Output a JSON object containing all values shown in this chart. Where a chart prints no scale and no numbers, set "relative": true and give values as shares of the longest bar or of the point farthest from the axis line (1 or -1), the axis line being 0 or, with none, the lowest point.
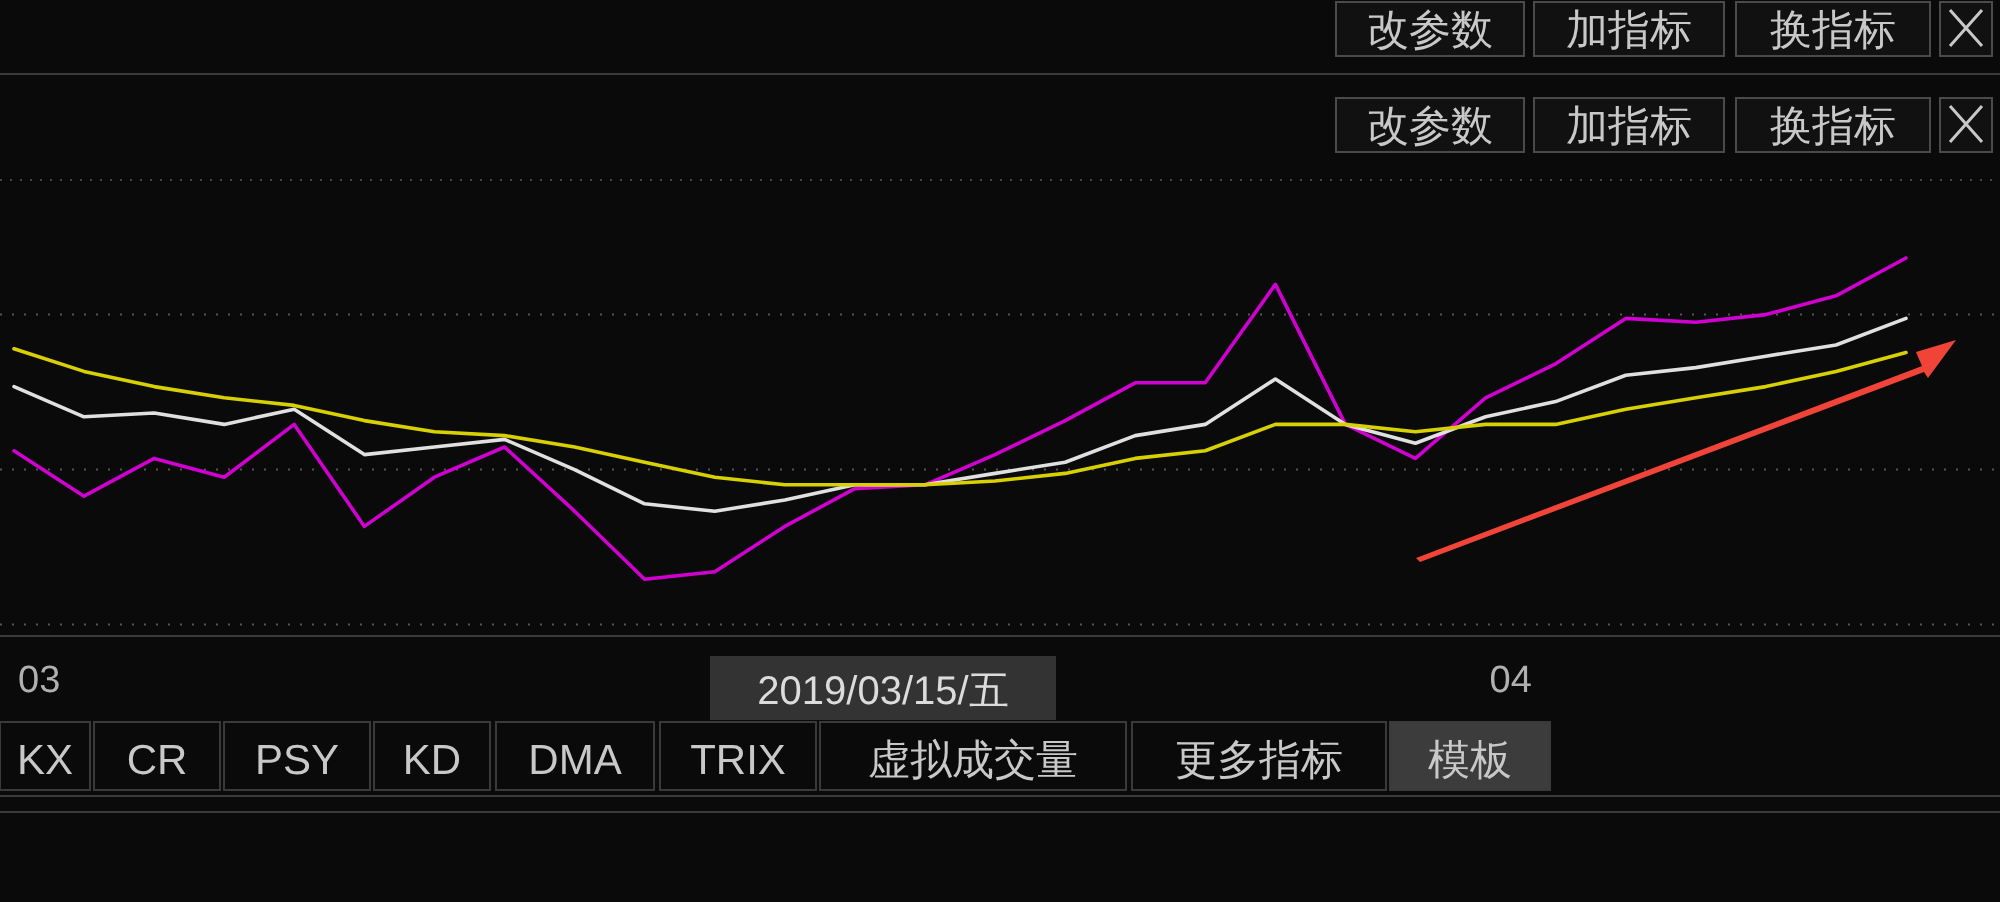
{
  "chart_data": {
    "type": "line",
    "relative": true,
    "categories": [
      null,
      null,
      null,
      null,
      null,
      null,
      null,
      null,
      null,
      null,
      null,
      null,
      null,
      null,
      null,
      null,
      null,
      null,
      null,
      null,
      null,
      null,
      null,
      null,
      null,
      null,
      null,
      null
    ],
    "series": [
      {
        "color": "#d000d0",
        "values": [
          0.49,
          0.37,
          0.47,
          0.42,
          0.56,
          0.29,
          0.42,
          0.5,
          0.33,
          0.15,
          0.17,
          0.29,
          0.39,
          0.4,
          0.48,
          0.57,
          0.67,
          0.67,
          0.93,
          0.56,
          0.47,
          0.63,
          0.72,
          0.84,
          0.83,
          0.85,
          0.9,
          1
        ]
      },
      {
        "color": "#e0e0e0",
        "values": [
          0.66,
          0.58,
          0.59,
          0.56,
          0.6,
          0.48,
          0.5,
          0.52,
          0.44,
          0.35,
          0.33,
          0.36,
          0.4,
          0.4,
          0.43,
          0.46,
          0.53,
          0.56,
          0.68,
          0.56,
          0.51,
          0.58,
          0.62,
          0.69,
          0.71,
          0.74,
          0.77,
          0.84
        ]
      },
      {
        "color": "#d8d000",
        "values": [
          0.76,
          0.7,
          0.66,
          0.63,
          0.61,
          0.57,
          0.54,
          0.53,
          0.5,
          0.46,
          0.42,
          0.4,
          0.4,
          0.4,
          0.41,
          0.43,
          0.47,
          0.49,
          0.56,
          0.56,
          0.54,
          0.56,
          0.56,
          0.6,
          0.63,
          0.66,
          0.7,
          0.75
        ]
      }
    ],
    "ref_lines": [
      {
        "axis": "y",
        "value": 0.85,
        "color": "#555555",
        "line_style": "dotted"
      },
      {
        "axis": "y",
        "value": 0.44,
        "color": "#555555",
        "line_style": "dotted"
      },
      {
        "axis": "y",
        "value": 0.03,
        "color": "#555555",
        "line_style": "dotted"
      }
    ],
    "annotations": [
      "03",
      "04",
      "改参数",
      "加指标",
      "换指标",
      "改参数",
      "加指标",
      "换指标",
      "2019/03/15/五",
      "KX",
      "CR",
      "PSY",
      "KD",
      "DMA",
      "TRIX",
      "虚拟成交量",
      "更多指标",
      "模板"
    ]
  }
}
